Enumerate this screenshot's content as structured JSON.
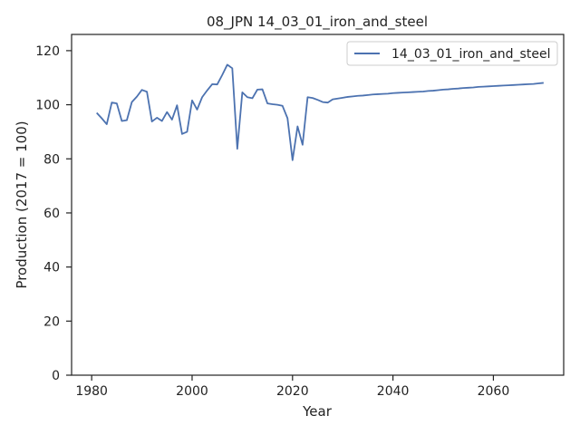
{
  "chart_data": {
    "type": "line",
    "title": "08_JPN 14_03_01_iron_and_steel",
    "xlabel": "Year",
    "ylabel": "Production (2017 = 100)",
    "xlim": [
      1976,
      2074
    ],
    "ylim": [
      0,
      126
    ],
    "xticks": [
      1980,
      2000,
      2020,
      2040,
      2060
    ],
    "yticks": [
      0,
      20,
      40,
      60,
      80,
      100,
      120
    ],
    "grid": false,
    "legend_position": "top-right",
    "series": [
      {
        "name": "14_03_01_iron_and_steel",
        "color": "#4c72b0",
        "x": [
          1981,
          1982,
          1983,
          1984,
          1985,
          1986,
          1987,
          1988,
          1989,
          1990,
          1991,
          1992,
          1993,
          1994,
          1995,
          1996,
          1997,
          1998,
          1999,
          2000,
          2001,
          2002,
          2003,
          2004,
          2005,
          2006,
          2007,
          2008,
          2009,
          2010,
          2011,
          2012,
          2013,
          2014,
          2015,
          2016,
          2017,
          2018,
          2019,
          2020,
          2021,
          2022,
          2023,
          2024,
          2025,
          2026,
          2027,
          2028,
          2029,
          2030,
          2031,
          2032,
          2033,
          2034,
          2035,
          2036,
          2037,
          2038,
          2039,
          2040,
          2041,
          2042,
          2043,
          2044,
          2045,
          2046,
          2047,
          2048,
          2049,
          2050,
          2051,
          2052,
          2053,
          2054,
          2055,
          2056,
          2057,
          2058,
          2059,
          2060,
          2061,
          2062,
          2063,
          2064,
          2065,
          2066,
          2067,
          2068,
          2069,
          2070
        ],
        "y": [
          97,
          95,
          92.8,
          100.8,
          100.5,
          94,
          94.3,
          101,
          103,
          105.5,
          104.8,
          93.8,
          95.2,
          94,
          97.3,
          94.5,
          99.8,
          89.2,
          90,
          101.6,
          98.2,
          102.8,
          105.3,
          107.6,
          107.5,
          111,
          114.8,
          113.5,
          83.7,
          104.6,
          102.8,
          102.4,
          105.6,
          105.7,
          100.5,
          100.2,
          100,
          99.6,
          95,
          79.5,
          92,
          85.2,
          102.8,
          102.5,
          101.8,
          101,
          100.8,
          102,
          102.3,
          102.6,
          102.9,
          103.1,
          103.3,
          103.4,
          103.6,
          103.8,
          103.9,
          104,
          104.1,
          104.3,
          104.4,
          104.5,
          104.6,
          104.7,
          104.8,
          104.9,
          105.1,
          105.2,
          105.4,
          105.6,
          105.7,
          105.9,
          106,
          106.2,
          106.3,
          106.4,
          106.6,
          106.7,
          106.8,
          106.9,
          107,
          107.1,
          107.2,
          107.3,
          107.4,
          107.5,
          107.6,
          107.7,
          107.9,
          108.1
        ]
      }
    ]
  }
}
